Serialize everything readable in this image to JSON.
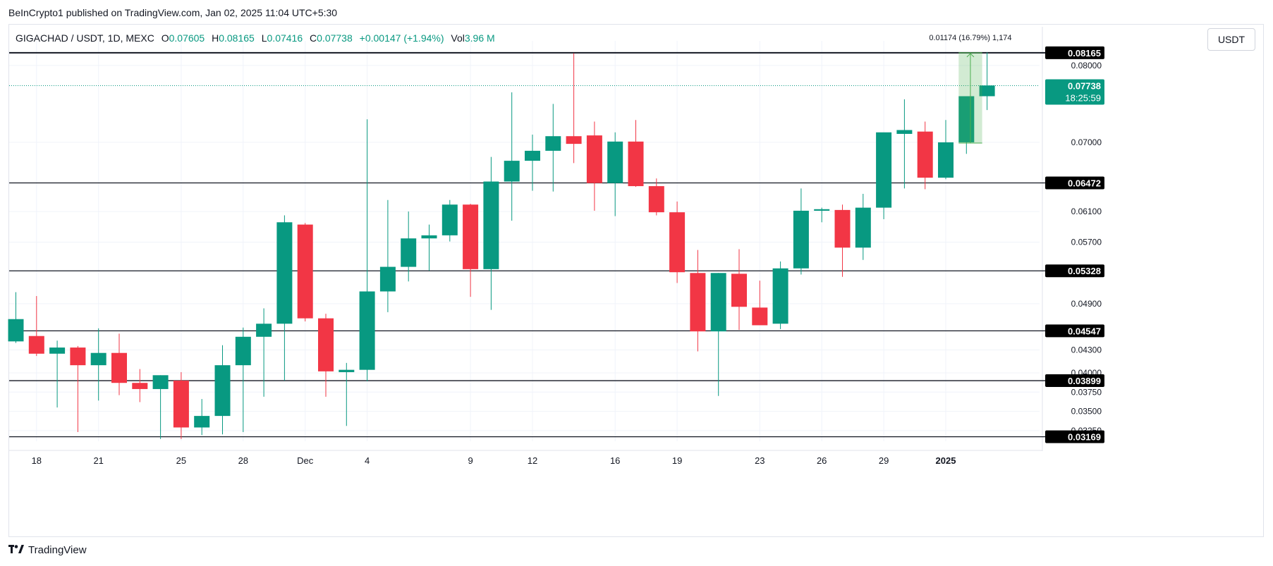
{
  "caption": "BeInCrypto1 published on TradingView.com, Jan 02, 2025 11:04 UTC+5:30",
  "legend": {
    "symbol": "GIGACHAD / USDT, 1D, MEXC",
    "open_label": "O",
    "open": "0.07605",
    "high_label": "H",
    "high": "0.08165",
    "low_label": "L",
    "low": "0.07416",
    "close_label": "C",
    "close": "0.07738",
    "change": "+0.00147 (+1.94%)",
    "vol_label": "Vol",
    "vol": "3.96 M"
  },
  "currency_button": "USDT",
  "footer_brand": "TradingView",
  "colors": {
    "up": "#089981",
    "down": "#f23645",
    "line": "#131722",
    "grid": "#f0f3fa",
    "measure": "#4caf50"
  },
  "chart_data": {
    "type": "candlestick",
    "title": "GIGACHAD / USDT, 1D, MEXC",
    "ylim": [
      0.0312,
      0.0832
    ],
    "y_ticks": [
      "0.08000",
      "0.07000",
      "0.06100",
      "0.05700",
      "0.04900",
      "0.04300",
      "0.04000",
      "0.03750",
      "0.03500",
      "0.03250"
    ],
    "x_ticks": [
      {
        "label": "18",
        "index": 1
      },
      {
        "label": "21",
        "index": 4
      },
      {
        "label": "25",
        "index": 8
      },
      {
        "label": "28",
        "index": 11
      },
      {
        "label": "Dec",
        "index": 14
      },
      {
        "label": "4",
        "index": 17
      },
      {
        "label": "9",
        "index": 22
      },
      {
        "label": "12",
        "index": 25
      },
      {
        "label": "16",
        "index": 29
      },
      {
        "label": "19",
        "index": 32
      },
      {
        "label": "23",
        "index": 36
      },
      {
        "label": "26",
        "index": 39
      },
      {
        "label": "29",
        "index": 42
      },
      {
        "label": "2025",
        "index": 45
      }
    ],
    "candles": [
      {
        "o": 0.0441,
        "h": 0.0505,
        "l": 0.0439,
        "c": 0.047
      },
      {
        "o": 0.0448,
        "h": 0.05,
        "l": 0.0422,
        "c": 0.0425
      },
      {
        "o": 0.0425,
        "h": 0.0442,
        "l": 0.0355,
        "c": 0.0433
      },
      {
        "o": 0.0433,
        "h": 0.0435,
        "l": 0.0323,
        "c": 0.041
      },
      {
        "o": 0.041,
        "h": 0.0458,
        "l": 0.0364,
        "c": 0.0426
      },
      {
        "o": 0.0426,
        "h": 0.0451,
        "l": 0.0371,
        "c": 0.0387
      },
      {
        "o": 0.0387,
        "h": 0.0405,
        "l": 0.0362,
        "c": 0.0379
      },
      {
        "o": 0.0379,
        "h": 0.0397,
        "l": 0.0314,
        "c": 0.0397
      },
      {
        "o": 0.039,
        "h": 0.0401,
        "l": 0.0314,
        "c": 0.0329
      },
      {
        "o": 0.0329,
        "h": 0.0366,
        "l": 0.0319,
        "c": 0.0344
      },
      {
        "o": 0.0344,
        "h": 0.0436,
        "l": 0.032,
        "c": 0.041
      },
      {
        "o": 0.041,
        "h": 0.0459,
        "l": 0.0323,
        "c": 0.0447
      },
      {
        "o": 0.0447,
        "h": 0.0484,
        "l": 0.0369,
        "c": 0.0464
      },
      {
        "o": 0.0464,
        "h": 0.0605,
        "l": 0.039,
        "c": 0.0596
      },
      {
        "o": 0.0593,
        "h": 0.0595,
        "l": 0.0467,
        "c": 0.0471
      },
      {
        "o": 0.0471,
        "h": 0.0477,
        "l": 0.0369,
        "c": 0.0402
      },
      {
        "o": 0.0401,
        "h": 0.0413,
        "l": 0.0331,
        "c": 0.0404
      },
      {
        "o": 0.0404,
        "h": 0.073,
        "l": 0.0389,
        "c": 0.0506
      },
      {
        "o": 0.0506,
        "h": 0.0625,
        "l": 0.0479,
        "c": 0.0538
      },
      {
        "o": 0.0538,
        "h": 0.061,
        "l": 0.0519,
        "c": 0.0575
      },
      {
        "o": 0.0575,
        "h": 0.0593,
        "l": 0.0533,
        "c": 0.0579
      },
      {
        "o": 0.0579,
        "h": 0.0625,
        "l": 0.0571,
        "c": 0.0619
      },
      {
        "o": 0.0619,
        "h": 0.062,
        "l": 0.0499,
        "c": 0.0535
      },
      {
        "o": 0.0535,
        "h": 0.0681,
        "l": 0.0482,
        "c": 0.0649
      },
      {
        "o": 0.0649,
        "h": 0.0765,
        "l": 0.0598,
        "c": 0.0676
      },
      {
        "o": 0.0676,
        "h": 0.071,
        "l": 0.0637,
        "c": 0.0689
      },
      {
        "o": 0.0689,
        "h": 0.075,
        "l": 0.0636,
        "c": 0.0708
      },
      {
        "o": 0.0708,
        "h": 0.0816,
        "l": 0.0673,
        "c": 0.0698
      },
      {
        "o": 0.0709,
        "h": 0.0727,
        "l": 0.0611,
        "c": 0.0647
      },
      {
        "o": 0.0647,
        "h": 0.0713,
        "l": 0.0604,
        "c": 0.0701
      },
      {
        "o": 0.0701,
        "h": 0.0729,
        "l": 0.0642,
        "c": 0.0643
      },
      {
        "o": 0.0643,
        "h": 0.0653,
        "l": 0.0605,
        "c": 0.0609
      },
      {
        "o": 0.0609,
        "h": 0.0623,
        "l": 0.0517,
        "c": 0.0531
      },
      {
        "o": 0.053,
        "h": 0.056,
        "l": 0.0428,
        "c": 0.0454
      },
      {
        "o": 0.0454,
        "h": 0.053,
        "l": 0.037,
        "c": 0.053
      },
      {
        "o": 0.0529,
        "h": 0.0561,
        "l": 0.0456,
        "c": 0.0486
      },
      {
        "o": 0.0485,
        "h": 0.052,
        "l": 0.0465,
        "c": 0.0462
      },
      {
        "o": 0.0464,
        "h": 0.0545,
        "l": 0.0457,
        "c": 0.0536
      },
      {
        "o": 0.0536,
        "h": 0.064,
        "l": 0.0528,
        "c": 0.0611
      },
      {
        "o": 0.0611,
        "h": 0.0615,
        "l": 0.0596,
        "c": 0.0613
      },
      {
        "o": 0.0612,
        "h": 0.0619,
        "l": 0.0525,
        "c": 0.0563
      },
      {
        "o": 0.0563,
        "h": 0.0633,
        "l": 0.0547,
        "c": 0.0615
      },
      {
        "o": 0.0615,
        "h": 0.0711,
        "l": 0.06,
        "c": 0.0713
      },
      {
        "o": 0.0711,
        "h": 0.0756,
        "l": 0.064,
        "c": 0.0716
      },
      {
        "o": 0.0714,
        "h": 0.0727,
        "l": 0.0639,
        "c": 0.0654
      },
      {
        "o": 0.0654,
        "h": 0.0729,
        "l": 0.0652,
        "c": 0.07
      },
      {
        "o": 0.07,
        "h": 0.0758,
        "l": 0.0685,
        "c": 0.076
      },
      {
        "o": 0.076,
        "h": 0.0817,
        "l": 0.0742,
        "c": 0.0774
      }
    ],
    "levels": [
      "0.08165",
      "0.06472",
      "0.05328",
      "0.04547",
      "0.03899",
      "0.03169"
    ],
    "current_price": "0.07738",
    "countdown": "18:25:59",
    "measure": {
      "from": 0.0699,
      "to": 0.08165,
      "start_index": 46,
      "end_index": 47,
      "label": "0.01174 (16.79%) 1,174"
    }
  }
}
